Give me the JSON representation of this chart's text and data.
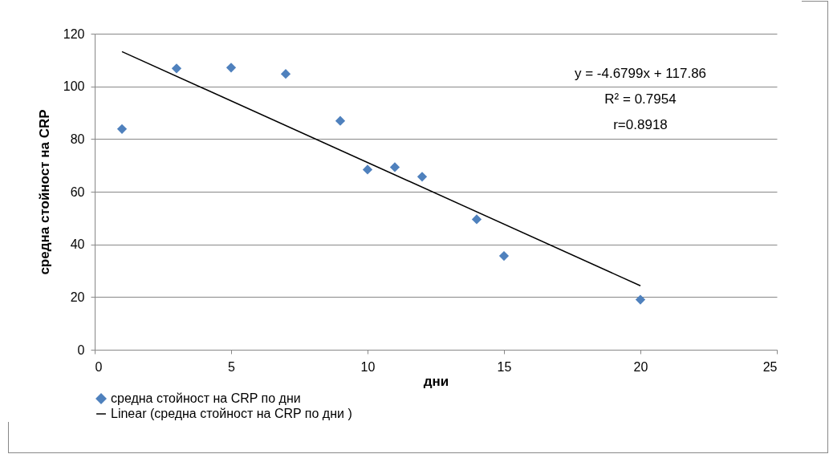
{
  "chart_data": {
    "type": "scatter",
    "xlabel": "дни",
    "ylabel": "средна стойност на CRP",
    "x": [
      1,
      3,
      5,
      7,
      9,
      10,
      11,
      12,
      14,
      15,
      20
    ],
    "series": [
      {
        "name": "средна стойност на CRP по дни",
        "color": "#4f81bd",
        "marker": "diamond",
        "values": [
          83.8,
          106.8,
          107.1,
          104.7,
          86.9,
          68.4,
          69.3,
          65.7,
          49.5,
          35.6,
          19.0
        ]
      },
      {
        "name": "Linear (средна стойност на CRP по дни )",
        "type": "line",
        "color": "#000000",
        "x": [
          1,
          20
        ],
        "values": [
          113.2,
          24.3
        ]
      }
    ],
    "xlim": [
      0,
      25
    ],
    "xticks": [
      0,
      5,
      10,
      15,
      20,
      25
    ],
    "ylim": [
      0,
      120
    ],
    "yticks": [
      0,
      20,
      40,
      60,
      80,
      100,
      120
    ],
    "grid": "y",
    "legend": "bottom",
    "annotations": [
      "y = -4.6799x + 117.86",
      "R² = 0.7954",
      "r=0.8918"
    ]
  }
}
